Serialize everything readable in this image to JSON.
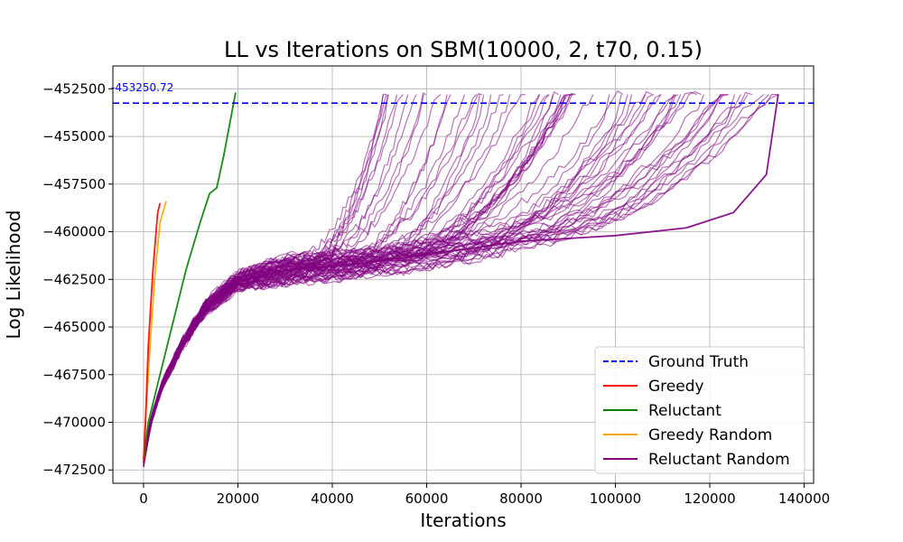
{
  "chart_data": {
    "type": "line",
    "title": "LL vs Iterations on SBM(10000, 2, t70, 0.15)",
    "xlabel": "Iterations",
    "ylabel": "Log Likelihood",
    "xlim": [
      -6500,
      142000
    ],
    "ylim": [
      -473200,
      -451300
    ],
    "xticks": [
      0,
      20000,
      40000,
      60000,
      80000,
      100000,
      120000,
      140000
    ],
    "xtick_labels": [
      "0",
      "20000",
      "40000",
      "60000",
      "80000",
      "100000",
      "120000",
      "140000"
    ],
    "yticks": [
      -472500,
      -470000,
      -467500,
      -465000,
      -462500,
      -460000,
      -457500,
      -455000,
      -452500
    ],
    "ytick_labels": [
      "−472500",
      "−470000",
      "−467500",
      "−465000",
      "−462500",
      "−460000",
      "−457500",
      "−455000",
      "−452500"
    ],
    "grid": true,
    "legend_position": "lower-right",
    "ground_truth": {
      "value": -453250.72,
      "label": "-453250.72",
      "color": "#0000ff"
    },
    "series": [
      {
        "name": "Ground Truth",
        "color": "#0000ff",
        "style": "dashed",
        "x": [
          -6500,
          142000
        ],
        "y": [
          -453250.72,
          -453250.72
        ]
      },
      {
        "name": "Greedy",
        "color": "#ff0000",
        "style": "solid",
        "x": [
          0,
          400,
          1000,
          2000,
          3000,
          3500
        ],
        "y": [
          -472000,
          -470000,
          -466000,
          -462000,
          -459000,
          -458500
        ]
      },
      {
        "name": "Reluctant",
        "color": "#008000",
        "style": "solid",
        "x": [
          0,
          1000,
          3000,
          6000,
          9000,
          12000,
          14000,
          15500,
          17000,
          19500
        ],
        "y": [
          -472000,
          -470000,
          -468000,
          -465000,
          -462000,
          -459500,
          -458000,
          -457700,
          -456000,
          -452700
        ]
      },
      {
        "name": "Greedy Random",
        "color": "#ffa500",
        "style": "solid",
        "x": [
          0,
          500,
          1500,
          2500,
          3500,
          4800
        ],
        "y": [
          -472000,
          -469500,
          -465500,
          -462000,
          -459500,
          -458400
        ]
      },
      {
        "name": "Reluctant Random",
        "color": "#800080",
        "style": "solid",
        "x": [
          0,
          1500,
          4000,
          8000,
          13000,
          20000,
          30000,
          45000,
          60000,
          80000,
          100000,
          115000,
          125000,
          132000,
          134500
        ],
        "y": [
          -472100,
          -470000,
          -468000,
          -466000,
          -464000,
          -462600,
          -462000,
          -461700,
          -461200,
          -460500,
          -460200,
          -459800,
          -459000,
          -457000,
          -452800
        ]
      }
    ]
  }
}
